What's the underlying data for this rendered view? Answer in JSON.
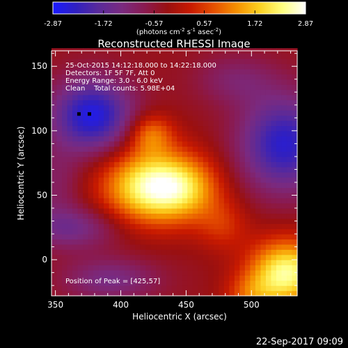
{
  "chart_data": {
    "type": "heatmap",
    "title": "Reconstructed RHESSI Image",
    "xlabel": "Heliocentric X (arcsec)",
    "ylabel": "Heliocentric Y (arcsec)",
    "xlim": [
      347,
      535
    ],
    "ylim": [
      -28,
      162
    ],
    "x_ticks": [
      350,
      400,
      450,
      500
    ],
    "y_ticks": [
      0,
      50,
      100,
      150
    ],
    "colorbar": {
      "label_parts": [
        "(photons cm",
        "-2",
        " s",
        "-1",
        " asec",
        "-2",
        ")"
      ],
      "min": -2.87,
      "max": 2.87,
      "tick_labels": [
        "-2.87",
        "-1.72",
        "-0.57",
        "0.57",
        "1.72",
        "2.87"
      ],
      "colormap": [
        "#1a1aff",
        "#3020c0",
        "#5a2a9a",
        "#7a2a80",
        "#8a1a50",
        "#9a1010",
        "#c81a00",
        "#e65000",
        "#f59000",
        "#fcd020",
        "#ffff80",
        "#ffffff"
      ]
    },
    "info_lines": [
      "25-Oct-2015 14:12:18.000 to 14:22:18.000",
      "Detectors: 1F 5F 7F, Att 0",
      "Energy Range: 3.0 - 6.0 keV",
      "Clean    Total counts: 5.98E+04"
    ],
    "peak_label": "Position of Peak = [425,57]",
    "peak": [
      425,
      57
    ],
    "sources": [
      {
        "x": 425,
        "y": 57,
        "sx": 26,
        "sy": 20,
        "amp": 3.0
      },
      {
        "x": 423,
        "y": 98,
        "sx": 12,
        "sy": 11,
        "amp": 1.3
      },
      {
        "x": 452,
        "y": 55,
        "sx": 18,
        "sy": 16,
        "amp": 0.9
      },
      {
        "x": 478,
        "y": 27,
        "sx": 14,
        "sy": 14,
        "amp": 0.75
      },
      {
        "x": 527,
        "y": -10,
        "sx": 20,
        "sy": 18,
        "amp": 2.8
      },
      {
        "x": 500,
        "y": -28,
        "sx": 14,
        "sy": 12,
        "amp": 1.0
      },
      {
        "x": 378,
        "y": 112,
        "sx": 22,
        "sy": 20,
        "amp": -2.3
      },
      {
        "x": 525,
        "y": 90,
        "sx": 24,
        "sy": 26,
        "amp": -2.1
      },
      {
        "x": 362,
        "y": 25,
        "sx": 26,
        "sy": 12,
        "amp": -1.1
      },
      {
        "x": 392,
        "y": -15,
        "sx": 26,
        "sy": 12,
        "amp": -1.0
      },
      {
        "x": 488,
        "y": 140,
        "sx": 22,
        "sy": 14,
        "amp": -0.7
      },
      {
        "x": 350,
        "y": 60,
        "sx": 14,
        "sy": 20,
        "amp": -0.6
      }
    ],
    "background": -0.35,
    "markers": [
      {
        "x": 368,
        "y": 113
      },
      {
        "x": 376,
        "y": 113
      }
    ]
  },
  "footer": {
    "date": "22-Sep-2017 09:09"
  }
}
